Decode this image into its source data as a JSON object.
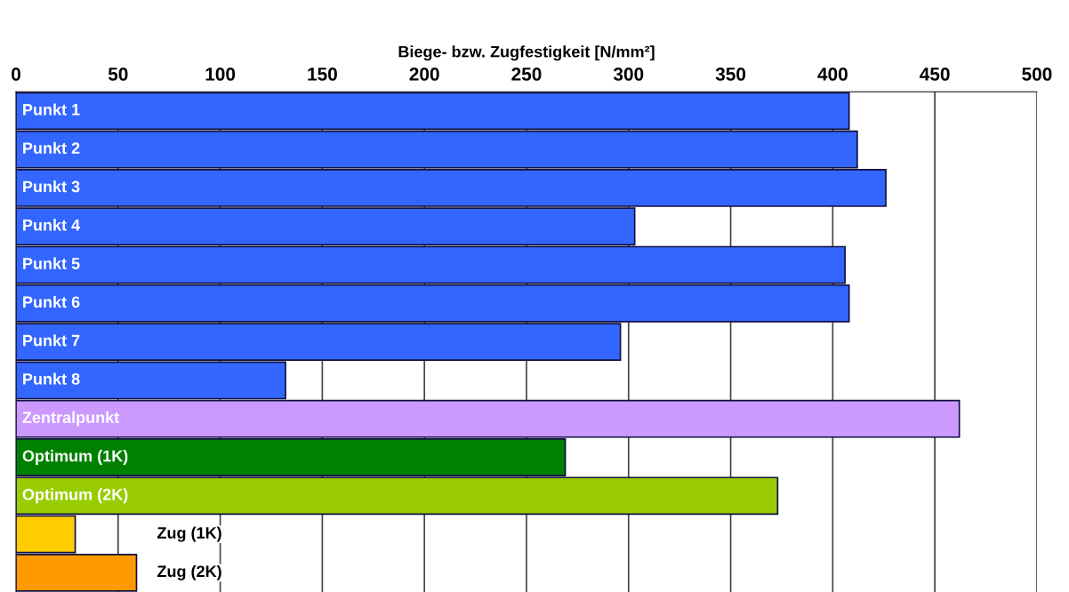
{
  "chart_data": {
    "type": "bar",
    "orientation": "horizontal",
    "xlabel": "Biege- bzw. Zugfestigkeit [N/mm²]",
    "categories": [
      "Punkt 1",
      "Punkt 2",
      "Punkt 3",
      "Punkt 4",
      "Punkt 5",
      "Punkt 6",
      "Punkt 7",
      "Punkt 8",
      "Zentralpunkt",
      "Optimum (1K)",
      "Optimum (2K)",
      "Zug (1K)",
      "Zug (2K)"
    ],
    "values": [
      408,
      412,
      426,
      303,
      406,
      408,
      296,
      132,
      462,
      269,
      373,
      29,
      59
    ],
    "colors": [
      "#3366ff",
      "#3366ff",
      "#3366ff",
      "#3366ff",
      "#3366ff",
      "#3366ff",
      "#3366ff",
      "#3366ff",
      "#cc99ff",
      "#008000",
      "#99cc00",
      "#ffcc00",
      "#ff9900"
    ],
    "xlim": [
      0,
      500
    ],
    "xticks": [
      0,
      50,
      100,
      150,
      200,
      250,
      300,
      350,
      400,
      450,
      500
    ],
    "grid": "x",
    "legend": false
  }
}
